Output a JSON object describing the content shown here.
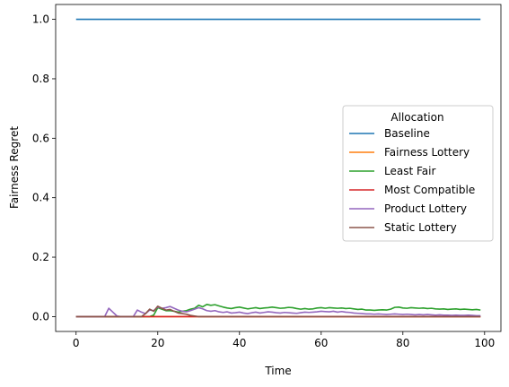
{
  "chart_data": {
    "type": "line",
    "title": "",
    "xlabel": "Time",
    "ylabel": "Fairness Regret",
    "xlim": [
      -5,
      104
    ],
    "ylim": [
      -0.05,
      1.05
    ],
    "xticks": [
      0,
      20,
      40,
      60,
      80,
      100
    ],
    "yticks": [
      0.0,
      0.2,
      0.4,
      0.6,
      0.8,
      1.0
    ],
    "xtick_labels": [
      "0",
      "20",
      "40",
      "60",
      "80",
      "100"
    ],
    "ytick_labels": [
      "0.0",
      "0.2",
      "0.4",
      "0.6",
      "0.8",
      "1.0"
    ],
    "grid": false,
    "legend": {
      "title": "Allocation",
      "placement": "center-right"
    },
    "x": [
      0,
      1,
      2,
      3,
      4,
      5,
      6,
      7,
      8,
      9,
      10,
      11,
      12,
      13,
      14,
      15,
      16,
      17,
      18,
      19,
      20,
      21,
      22,
      23,
      24,
      25,
      26,
      27,
      28,
      29,
      30,
      31,
      32,
      33,
      34,
      35,
      36,
      37,
      38,
      39,
      40,
      41,
      42,
      43,
      44,
      45,
      46,
      47,
      48,
      49,
      50,
      51,
      52,
      53,
      54,
      55,
      56,
      57,
      58,
      59,
      60,
      61,
      62,
      63,
      64,
      65,
      66,
      67,
      68,
      69,
      70,
      71,
      72,
      73,
      74,
      75,
      76,
      77,
      78,
      79,
      80,
      81,
      82,
      83,
      84,
      85,
      86,
      87,
      88,
      89,
      90,
      91,
      92,
      93,
      94,
      95,
      96,
      97,
      98,
      99
    ],
    "series": [
      {
        "name": "Baseline",
        "color": "#1f77b4",
        "values": [
          1,
          1,
          1,
          1,
          1,
          1,
          1,
          1,
          1,
          1,
          1,
          1,
          1,
          1,
          1,
          1,
          1,
          1,
          1,
          1,
          1,
          1,
          1,
          1,
          1,
          1,
          1,
          1,
          1,
          1,
          1,
          1,
          1,
          1,
          1,
          1,
          1,
          1,
          1,
          1,
          1,
          1,
          1,
          1,
          1,
          1,
          1,
          1,
          1,
          1,
          1,
          1,
          1,
          1,
          1,
          1,
          1,
          1,
          1,
          1,
          1,
          1,
          1,
          1,
          1,
          1,
          1,
          1,
          1,
          1,
          1,
          1,
          1,
          1,
          1,
          1,
          1,
          1,
          1,
          1,
          1,
          1,
          1,
          1,
          1,
          1,
          1,
          1,
          1,
          1,
          1,
          1,
          1,
          1,
          1,
          1,
          1,
          1,
          1,
          1
        ]
      },
      {
        "name": "Fairness Lottery",
        "color": "#ff7f0e",
        "values": [
          0,
          0,
          0,
          0,
          0,
          0,
          0,
          0,
          0,
          0,
          0,
          0,
          0,
          0,
          0,
          0,
          0,
          0,
          0,
          0,
          0,
          0,
          0,
          0,
          0,
          0,
          0,
          0,
          0,
          0,
          0,
          0,
          0,
          0,
          0,
          0,
          0,
          0,
          0,
          0,
          0,
          0,
          0,
          0,
          0,
          0,
          0,
          0,
          0,
          0,
          0,
          0,
          0,
          0,
          0,
          0,
          0,
          0,
          0,
          0,
          0,
          0,
          0,
          0,
          0,
          0,
          0,
          0,
          0,
          0,
          0,
          0,
          0,
          0,
          0,
          0,
          0,
          0,
          0,
          0,
          0,
          0,
          0,
          0,
          0,
          0,
          0,
          0,
          0,
          0,
          0,
          0,
          0,
          0,
          0,
          0,
          0,
          0,
          0,
          0
        ]
      },
      {
        "name": "Least Fair",
        "color": "#2ca02c",
        "values": [
          0,
          0,
          0,
          0,
          0,
          0,
          0,
          0,
          0,
          0,
          0,
          0,
          0,
          0,
          0,
          0,
          0,
          0,
          0,
          0.005,
          0.03,
          0.025,
          0.02,
          0.02,
          0.018,
          0.015,
          0.018,
          0.02,
          0.025,
          0.028,
          0.038,
          0.033,
          0.041,
          0.038,
          0.04,
          0.036,
          0.032,
          0.029,
          0.027,
          0.03,
          0.032,
          0.029,
          0.026,
          0.028,
          0.03,
          0.027,
          0.029,
          0.03,
          0.032,
          0.03,
          0.028,
          0.029,
          0.031,
          0.03,
          0.027,
          0.025,
          0.027,
          0.025,
          0.026,
          0.029,
          0.03,
          0.028,
          0.03,
          0.029,
          0.028,
          0.029,
          0.027,
          0.028,
          0.026,
          0.024,
          0.025,
          0.022,
          0.022,
          0.021,
          0.022,
          0.023,
          0.022,
          0.025,
          0.031,
          0.032,
          0.029,
          0.028,
          0.03,
          0.029,
          0.028,
          0.029,
          0.027,
          0.028,
          0.026,
          0.025,
          0.026,
          0.024,
          0.025,
          0.026,
          0.024,
          0.025,
          0.024,
          0.023,
          0.024,
          0.022
        ]
      },
      {
        "name": "Most Compatible",
        "color": "#d62728",
        "values": [
          0,
          0,
          0,
          0,
          0,
          0,
          0,
          0,
          0,
          0,
          0,
          0,
          0,
          0,
          0,
          0,
          0,
          0,
          0,
          0,
          0,
          0,
          0,
          0,
          0,
          0,
          0,
          0,
          0,
          0,
          0,
          0,
          0,
          0,
          0,
          0,
          0,
          0,
          0,
          0,
          0,
          0,
          0,
          0,
          0,
          0,
          0,
          0,
          0,
          0,
          0,
          0,
          0,
          0,
          0,
          0,
          0,
          0,
          0,
          0,
          0,
          0,
          0,
          0,
          0,
          0,
          0,
          0,
          0,
          0,
          0,
          0,
          0,
          0,
          0,
          0,
          0,
          0,
          0,
          0,
          0,
          0,
          0,
          0,
          0,
          0,
          0,
          0,
          0,
          0,
          0,
          0,
          0,
          0,
          0,
          0,
          0,
          0,
          0,
          0
        ]
      },
      {
        "name": "Product Lottery",
        "color": "#9467bd",
        "values": [
          0,
          0,
          0,
          0,
          0,
          0,
          0,
          0,
          0.028,
          0.015,
          0.002,
          0,
          0,
          0,
          0,
          0.022,
          0.015,
          0.01,
          0.022,
          0.02,
          0.032,
          0.028,
          0.03,
          0.034,
          0.028,
          0.022,
          0.018,
          0.016,
          0.02,
          0.025,
          0.03,
          0.026,
          0.02,
          0.018,
          0.02,
          0.016,
          0.014,
          0.016,
          0.012,
          0.013,
          0.015,
          0.012,
          0.01,
          0.013,
          0.015,
          0.012,
          0.014,
          0.016,
          0.015,
          0.013,
          0.012,
          0.014,
          0.013,
          0.012,
          0.011,
          0.013,
          0.015,
          0.014,
          0.015,
          0.016,
          0.018,
          0.017,
          0.016,
          0.018,
          0.015,
          0.017,
          0.015,
          0.014,
          0.012,
          0.011,
          0.01,
          0.009,
          0.009,
          0.008,
          0.009,
          0.008,
          0.007,
          0.008,
          0.009,
          0.008,
          0.007,
          0.008,
          0.007,
          0.006,
          0.007,
          0.006,
          0.007,
          0.006,
          0.005,
          0.006,
          0.005,
          0.005,
          0.004,
          0.005,
          0.004,
          0.004,
          0.005,
          0.004,
          0.003,
          0.003
        ]
      },
      {
        "name": "Static Lottery",
        "color": "#8c564b",
        "values": [
          0,
          0,
          0,
          0,
          0,
          0,
          0,
          0,
          0,
          0,
          0,
          0,
          0,
          0,
          0,
          0,
          0,
          0.01,
          0.025,
          0.018,
          0.035,
          0.028,
          0.022,
          0.024,
          0.018,
          0.012,
          0.01,
          0.008,
          0.004,
          0.002,
          0,
          0,
          0,
          0,
          0,
          0,
          0,
          0,
          0,
          0,
          0,
          0,
          0,
          0,
          0,
          0,
          0,
          0,
          0,
          0,
          0,
          0,
          0,
          0,
          0,
          0,
          0,
          0,
          0,
          0,
          0,
          0,
          0,
          0,
          0,
          0,
          0,
          0,
          0,
          0,
          0,
          0,
          0,
          0,
          0,
          0,
          0,
          0,
          0,
          0,
          0,
          0,
          0,
          0,
          0,
          0,
          0,
          0,
          0,
          0,
          0,
          0,
          0,
          0,
          0,
          0,
          0,
          0,
          0,
          0
        ]
      }
    ]
  }
}
